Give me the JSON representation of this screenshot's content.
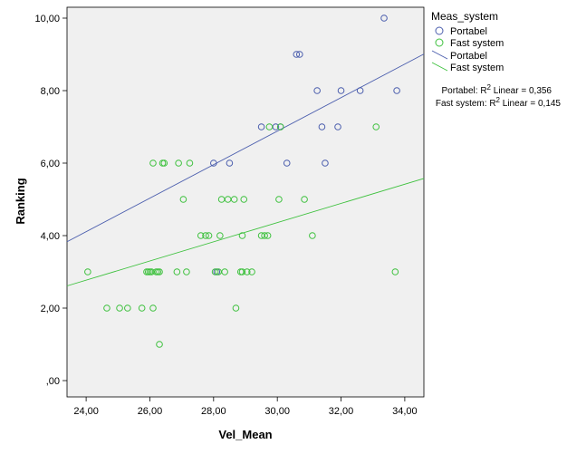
{
  "chart_data": {
    "type": "scatter",
    "xlabel": "Vel_Mean",
    "ylabel": "Ranking",
    "xlim": [
      23.4,
      34.6
    ],
    "ylim": [
      -0.45,
      10.3
    ],
    "x_ticks": [
      24,
      26,
      28,
      30,
      32,
      34
    ],
    "x_tick_labels": [
      "24,00",
      "26,00",
      "28,00",
      "30,00",
      "32,00",
      "34,00"
    ],
    "y_ticks": [
      0,
      2,
      4,
      6,
      8,
      10
    ],
    "y_tick_labels": [
      ",00",
      "2,00",
      "4,00",
      "6,00",
      "8,00",
      "10,00"
    ],
    "grid": false,
    "legend": {
      "title": "Meas_system",
      "position": "right",
      "items": [
        {
          "label": "Portabel",
          "kind": "marker",
          "series": 0
        },
        {
          "label": "Fast system",
          "kind": "marker",
          "series": 1
        },
        {
          "label": "Portabel",
          "kind": "line",
          "series": 0
        },
        {
          "label": "Fast system",
          "kind": "line",
          "series": 1
        }
      ]
    },
    "annotations": {
      "portabel_r2_prefix": "Portabel: R",
      "fast_r2_prefix": "Fast system: R",
      "r2_sup": "2",
      "portabel_r2_suffix": " Linear = 0,356",
      "fast_r2_suffix": " Linear = 0,145"
    },
    "series": [
      {
        "name": "Portabel",
        "color": "#4a5dad",
        "points": [
          [
            28.0,
            6
          ],
          [
            28.5,
            6
          ],
          [
            29.5,
            7
          ],
          [
            29.95,
            7
          ],
          [
            30.1,
            7
          ],
          [
            30.3,
            6
          ],
          [
            30.6,
            9
          ],
          [
            30.7,
            9
          ],
          [
            31.25,
            8
          ],
          [
            31.4,
            7
          ],
          [
            31.5,
            6
          ],
          [
            31.9,
            7
          ],
          [
            32.0,
            8
          ],
          [
            32.6,
            8
          ],
          [
            33.35,
            10
          ],
          [
            33.75,
            8
          ],
          [
            28.1,
            3
          ]
        ],
        "fit": {
          "slope": 0.4623,
          "intercept": -6.987
        }
      },
      {
        "name": "Fast system",
        "color": "#3ec13e",
        "points": [
          [
            24.05,
            3
          ],
          [
            24.65,
            2
          ],
          [
            25.05,
            2
          ],
          [
            25.3,
            2
          ],
          [
            25.75,
            2
          ],
          [
            25.9,
            3
          ],
          [
            25.95,
            3
          ],
          [
            26.0,
            3
          ],
          [
            26.05,
            3
          ],
          [
            26.1,
            6
          ],
          [
            26.1,
            2
          ],
          [
            26.2,
            3
          ],
          [
            26.25,
            3
          ],
          [
            26.3,
            3
          ],
          [
            26.3,
            1
          ],
          [
            26.4,
            6
          ],
          [
            26.45,
            6
          ],
          [
            26.85,
            3
          ],
          [
            26.9,
            6
          ],
          [
            27.05,
            5
          ],
          [
            27.15,
            3
          ],
          [
            27.25,
            6
          ],
          [
            27.6,
            4
          ],
          [
            27.75,
            4
          ],
          [
            27.85,
            4
          ],
          [
            28.05,
            3
          ],
          [
            28.15,
            3
          ],
          [
            28.2,
            4
          ],
          [
            28.25,
            5
          ],
          [
            28.35,
            3
          ],
          [
            28.45,
            5
          ],
          [
            28.65,
            5
          ],
          [
            28.7,
            2
          ],
          [
            28.85,
            3
          ],
          [
            28.9,
            3
          ],
          [
            28.9,
            4
          ],
          [
            28.95,
            5
          ],
          [
            29.05,
            3
          ],
          [
            29.2,
            3
          ],
          [
            29.5,
            4
          ],
          [
            29.6,
            4
          ],
          [
            29.7,
            4
          ],
          [
            29.75,
            7
          ],
          [
            30.05,
            5
          ],
          [
            30.1,
            7
          ],
          [
            30.85,
            5
          ],
          [
            31.1,
            4
          ],
          [
            33.1,
            7
          ],
          [
            33.7,
            3
          ]
        ],
        "fit": {
          "slope": 0.2646,
          "intercept": -3.579
        }
      }
    ]
  }
}
